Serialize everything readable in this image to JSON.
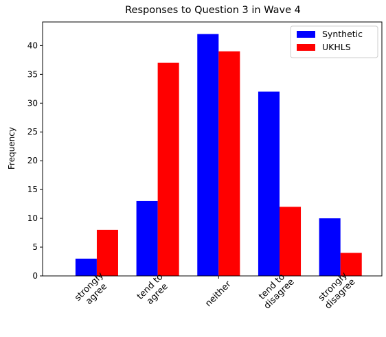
{
  "chart_data": {
    "type": "bar",
    "title": "Responses to Question 3 in Wave 4",
    "xlabel": "",
    "ylabel": "Frequency",
    "categories": [
      [
        "strongly",
        "agree"
      ],
      [
        "tend to",
        "agree"
      ],
      [
        "neither"
      ],
      [
        "tend to",
        "disagree"
      ],
      [
        "strongly",
        "disagree"
      ]
    ],
    "series": [
      {
        "name": "Synthetic",
        "color": "#0000ff",
        "values": [
          3,
          13,
          42,
          32,
          10
        ]
      },
      {
        "name": "UKHLS",
        "color": "#ff0000",
        "values": [
          8,
          37,
          39,
          12,
          4
        ]
      }
    ],
    "ylim": [
      0,
      44.1
    ],
    "yticks": [
      0,
      5,
      10,
      15,
      20,
      25,
      30,
      35,
      40
    ],
    "legend_position": "top-right",
    "grid": false
  }
}
